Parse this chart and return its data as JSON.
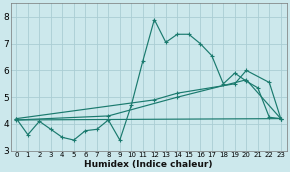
{
  "xlabel": "Humidex (Indice chaleur)",
  "bg_color": "#cce8ec",
  "grid_color": "#aacdd4",
  "line_color": "#1a7a6e",
  "xlim": [
    -0.5,
    23.5
  ],
  "ylim": [
    3.0,
    8.5
  ],
  "xticks": [
    0,
    1,
    2,
    3,
    4,
    5,
    6,
    7,
    8,
    9,
    10,
    11,
    12,
    13,
    14,
    15,
    16,
    17,
    18,
    19,
    20,
    21,
    22,
    23
  ],
  "yticks": [
    3,
    4,
    5,
    6,
    7,
    8
  ],
  "series1_x": [
    0,
    1,
    2,
    3,
    4,
    5,
    6,
    7,
    8,
    9,
    10,
    11,
    12,
    13,
    14,
    15,
    16,
    17,
    18,
    19,
    20,
    21,
    22,
    23
  ],
  "series1_y": [
    4.2,
    3.6,
    4.1,
    3.8,
    3.5,
    3.4,
    3.75,
    3.8,
    4.15,
    3.4,
    4.7,
    6.35,
    7.9,
    7.05,
    7.35,
    7.35,
    7.0,
    6.55,
    5.5,
    5.9,
    5.6,
    5.35,
    4.25,
    4.2
  ],
  "series2_x": [
    0,
    12,
    14,
    19,
    20,
    22,
    23
  ],
  "series2_y": [
    4.2,
    4.9,
    5.15,
    5.5,
    6.0,
    5.55,
    4.2
  ],
  "series3_x": [
    0,
    8,
    14,
    20,
    23
  ],
  "series3_y": [
    4.15,
    4.3,
    5.0,
    5.65,
    4.2
  ],
  "series4_x": [
    0,
    23
  ],
  "series4_y": [
    4.15,
    4.2
  ]
}
